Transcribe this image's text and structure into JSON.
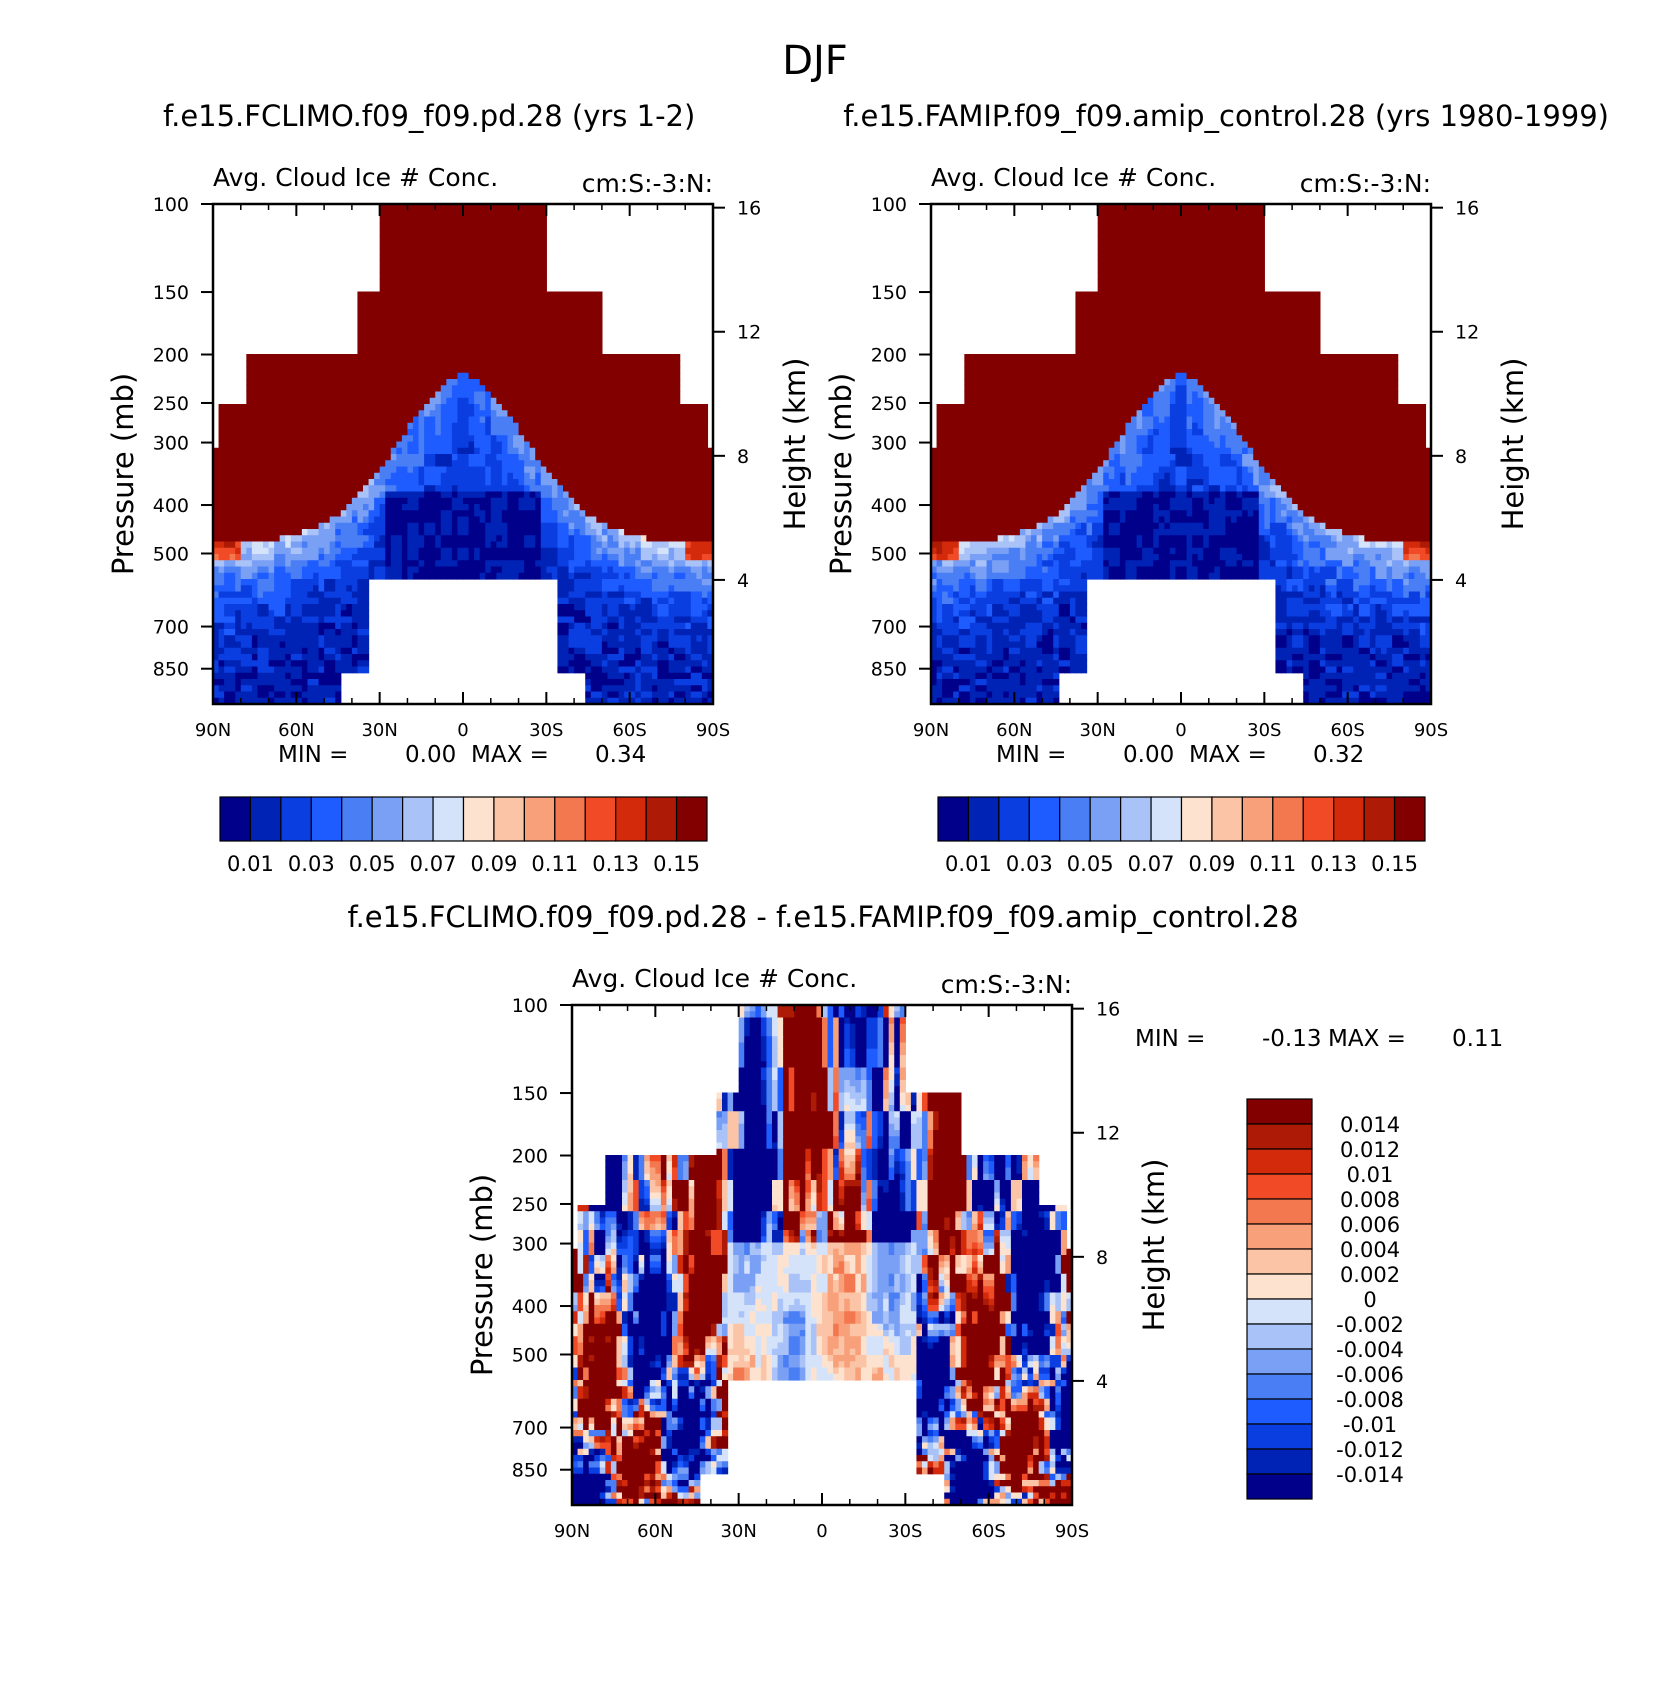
{
  "figure": {
    "title": "DJF",
    "colors": {
      "background": "#ffffff",
      "missing": "#ffffff",
      "axis": "#000000"
    }
  },
  "chart_data": [
    {
      "type": "heatmap",
      "panel": "left",
      "case_title": "f.e15.FCLIMO.f09_f09.pd.28 (yrs 1-2)",
      "variable_label": "Avg. Cloud Ice # Conc.",
      "units_label": "cm:S:-3:N:",
      "xlabel": "",
      "ylabel": "Pressure (mb)",
      "y2label": "Height (km)",
      "x_ticks": [
        "90N",
        "60N",
        "30N",
        "0",
        "30S",
        "60S",
        "90S"
      ],
      "x_range": [
        90,
        -90
      ],
      "y_ticks": [
        100,
        150,
        200,
        250,
        300,
        400,
        500,
        700,
        850
      ],
      "y_range": [
        100,
        1000
      ],
      "y2_ticks": [
        16,
        12,
        8,
        4
      ],
      "stats": {
        "min_label": "MIN =",
        "min": "0.00",
        "max_label": "MAX =",
        "max": "0.34"
      },
      "levels": [
        0.01,
        0.02,
        0.03,
        0.04,
        0.05,
        0.06,
        0.07,
        0.08,
        0.09,
        0.1,
        0.11,
        0.12,
        0.13,
        0.14,
        0.15
      ],
      "colorbar_labels": [
        "0.01",
        "0.03",
        "0.05",
        "0.07",
        "0.09",
        "0.11",
        "0.13",
        "0.15"
      ],
      "colormap": [
        "#00008b",
        "#0022b5",
        "#0a3ee0",
        "#1e5cff",
        "#4a7ef5",
        "#7aa0f5",
        "#a9c2f7",
        "#d4e3fa",
        "#fde3cf",
        "#fbc4a6",
        "#f8a07a",
        "#f4784f",
        "#f04a26",
        "#d32a0c",
        "#ad1a05",
        "#820000"
      ]
    },
    {
      "type": "heatmap",
      "panel": "right",
      "case_title": "f.e15.FAMIP.f09_f09.amip_control.28 (yrs 1980-1999)",
      "variable_label": "Avg. Cloud Ice # Conc.",
      "units_label": "cm:S:-3:N:",
      "xlabel": "",
      "ylabel": "Pressure (mb)",
      "y2label": "Height (km)",
      "x_ticks": [
        "90N",
        "60N",
        "30N",
        "0",
        "30S",
        "60S",
        "90S"
      ],
      "x_range": [
        90,
        -90
      ],
      "y_ticks": [
        100,
        150,
        200,
        250,
        300,
        400,
        500,
        700,
        850
      ],
      "y_range": [
        100,
        1000
      ],
      "y2_ticks": [
        16,
        12,
        8,
        4
      ],
      "stats": {
        "min_label": "MIN =",
        "min": "0.00",
        "max_label": "MAX =",
        "max": "0.32"
      },
      "levels": [
        0.01,
        0.02,
        0.03,
        0.04,
        0.05,
        0.06,
        0.07,
        0.08,
        0.09,
        0.1,
        0.11,
        0.12,
        0.13,
        0.14,
        0.15
      ],
      "colorbar_labels": [
        "0.01",
        "0.03",
        "0.05",
        "0.07",
        "0.09",
        "0.11",
        "0.13",
        "0.15"
      ],
      "colormap": [
        "#00008b",
        "#0022b5",
        "#0a3ee0",
        "#1e5cff",
        "#4a7ef5",
        "#7aa0f5",
        "#a9c2f7",
        "#d4e3fa",
        "#fde3cf",
        "#fbc4a6",
        "#f8a07a",
        "#f4784f",
        "#f04a26",
        "#d32a0c",
        "#ad1a05",
        "#820000"
      ]
    },
    {
      "type": "heatmap",
      "panel": "difference",
      "case_title": "f.e15.FCLIMO.f09_f09.pd.28 - f.e15.FAMIP.f09_f09.amip_control.28",
      "variable_label": "Avg. Cloud Ice # Conc.",
      "units_label": "cm:S:-3:N:",
      "xlabel": "",
      "ylabel": "Pressure (mb)",
      "y2label": "Height (km)",
      "x_ticks": [
        "90N",
        "60N",
        "30N",
        "0",
        "30S",
        "60S",
        "90S"
      ],
      "x_range": [
        90,
        -90
      ],
      "y_ticks": [
        100,
        150,
        200,
        250,
        300,
        400,
        500,
        700,
        850
      ],
      "y_range": [
        100,
        1000
      ],
      "y2_ticks": [
        16,
        12,
        8,
        4
      ],
      "stats": {
        "min_label": "MIN =",
        "min": "-0.13",
        "max_label": "MAX =",
        "max": "0.11"
      },
      "levels": [
        -0.014,
        -0.012,
        -0.01,
        -0.008,
        -0.006,
        -0.004,
        -0.002,
        0,
        0.002,
        0.004,
        0.006,
        0.008,
        0.01,
        0.012,
        0.014
      ],
      "colorbar_labels": [
        "0.014",
        "0.012",
        "0.01",
        "0.008",
        "0.006",
        "0.004",
        "0.002",
        "0",
        "-0.002",
        "-0.004",
        "-0.006",
        "-0.008",
        "-0.01",
        "-0.012",
        "-0.014"
      ],
      "colormap": [
        "#00008b",
        "#0022b5",
        "#0a3ee0",
        "#1e5cff",
        "#4a7ef5",
        "#7aa0f5",
        "#a9c2f7",
        "#d4e3fa",
        "#fde3cf",
        "#fbc4a6",
        "#f8a07a",
        "#f4784f",
        "#f04a26",
        "#d32a0c",
        "#ad1a05",
        "#820000"
      ]
    }
  ]
}
